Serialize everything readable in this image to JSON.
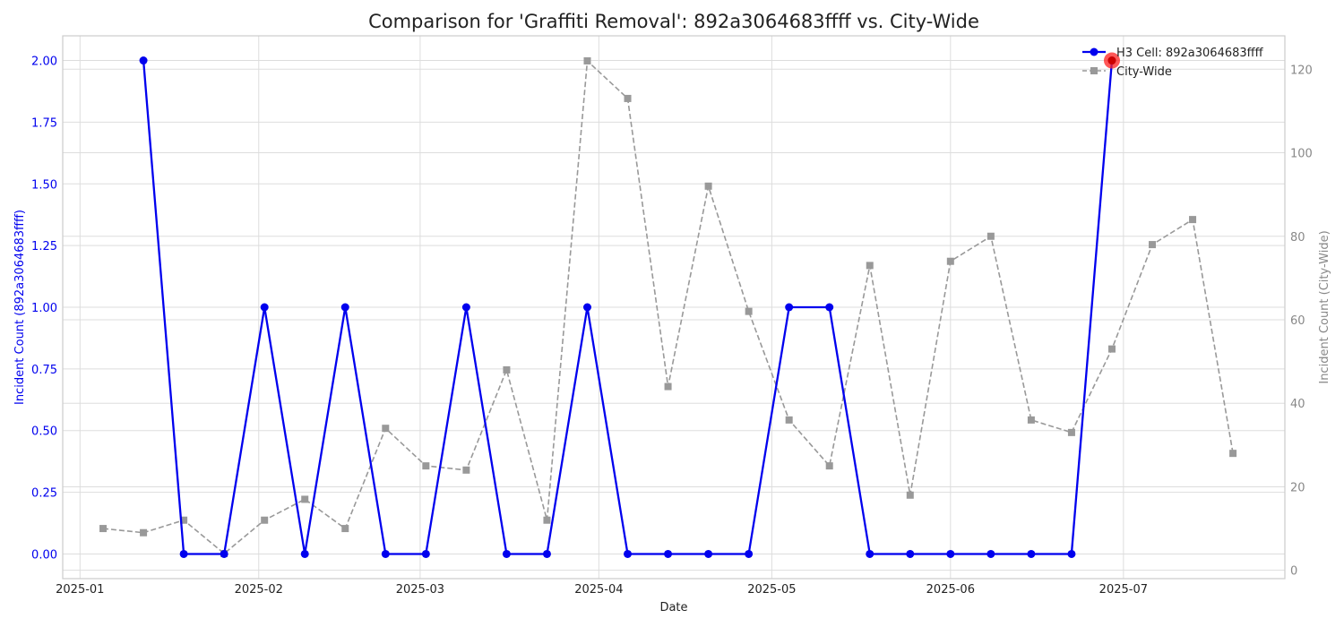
{
  "chart_data": {
    "type": "line",
    "title": "Comparison for 'Graffiti Removal': 892a3064683ffff vs. City-Wide",
    "xlabel": "Date",
    "ylabel_left": "Incident Count (892a3064683ffff)",
    "ylabel_right": "Incident Count (City-Wide)",
    "x_range": [
      "2024-12-29",
      "2025-07-29"
    ],
    "x_ticks": [
      "2025-01-01",
      "2025-02-01",
      "2025-03-01",
      "2025-04-01",
      "2025-05-01",
      "2025-06-01",
      "2025-07-01"
    ],
    "x_tick_labels": [
      "2025-01",
      "2025-02",
      "2025-03",
      "2025-04",
      "2025-05",
      "2025-06",
      "2025-07"
    ],
    "ylim_left": [
      -0.1,
      2.1
    ],
    "ylim_right": [
      -2,
      128
    ],
    "y_ticks_left": [
      0.0,
      0.25,
      0.5,
      0.75,
      1.0,
      1.25,
      1.5,
      1.75,
      2.0
    ],
    "y_tick_labels_left": [
      "0.00",
      "0.25",
      "0.50",
      "0.75",
      "1.00",
      "1.25",
      "1.50",
      "1.75",
      "2.00"
    ],
    "y_ticks_right": [
      0,
      20,
      40,
      60,
      80,
      100,
      120
    ],
    "y_tick_labels_right": [
      "0",
      "20",
      "40",
      "60",
      "80",
      "100",
      "120"
    ],
    "grid": true,
    "legend_position": "top-right",
    "series": [
      {
        "name": "H3 Cell: 892a3064683ffff",
        "axis": "left",
        "color": "#0000ee",
        "style": "solid",
        "marker": "circle",
        "x": [
          "2025-01-12",
          "2025-01-19",
          "2025-01-26",
          "2025-02-02",
          "2025-02-09",
          "2025-02-16",
          "2025-02-23",
          "2025-03-02",
          "2025-03-09",
          "2025-03-16",
          "2025-03-23",
          "2025-03-30",
          "2025-04-06",
          "2025-04-13",
          "2025-04-20",
          "2025-04-27",
          "2025-05-04",
          "2025-05-11",
          "2025-05-18",
          "2025-05-25",
          "2025-06-01",
          "2025-06-08",
          "2025-06-15",
          "2025-06-22",
          "2025-06-29"
        ],
        "values": [
          2,
          0,
          0,
          1,
          0,
          1,
          0,
          0,
          1,
          0,
          0,
          1,
          0,
          0,
          0,
          0,
          1,
          1,
          0,
          0,
          0,
          0,
          0,
          0,
          2
        ]
      },
      {
        "name": "City-Wide",
        "axis": "right",
        "color": "#999999",
        "style": "dashed",
        "marker": "square",
        "x": [
          "2025-01-05",
          "2025-01-12",
          "2025-01-19",
          "2025-01-26",
          "2025-02-02",
          "2025-02-09",
          "2025-02-16",
          "2025-02-23",
          "2025-03-02",
          "2025-03-09",
          "2025-03-16",
          "2025-03-23",
          "2025-03-30",
          "2025-04-06",
          "2025-04-13",
          "2025-04-20",
          "2025-04-27",
          "2025-05-04",
          "2025-05-11",
          "2025-05-18",
          "2025-05-25",
          "2025-06-01",
          "2025-06-08",
          "2025-06-15",
          "2025-06-22",
          "2025-06-29",
          "2025-07-06",
          "2025-07-13",
          "2025-07-20"
        ],
        "values": [
          10,
          9,
          12,
          4,
          12,
          17,
          10,
          34,
          25,
          24,
          48,
          12,
          122,
          113,
          44,
          92,
          62,
          36,
          25,
          73,
          18,
          74,
          80,
          36,
          33,
          53,
          78,
          84,
          28
        ]
      }
    ],
    "highlight": {
      "series": "H3 Cell: 892a3064683ffff",
      "x": "2025-06-29",
      "value": 2,
      "color": "#ff2020"
    }
  }
}
